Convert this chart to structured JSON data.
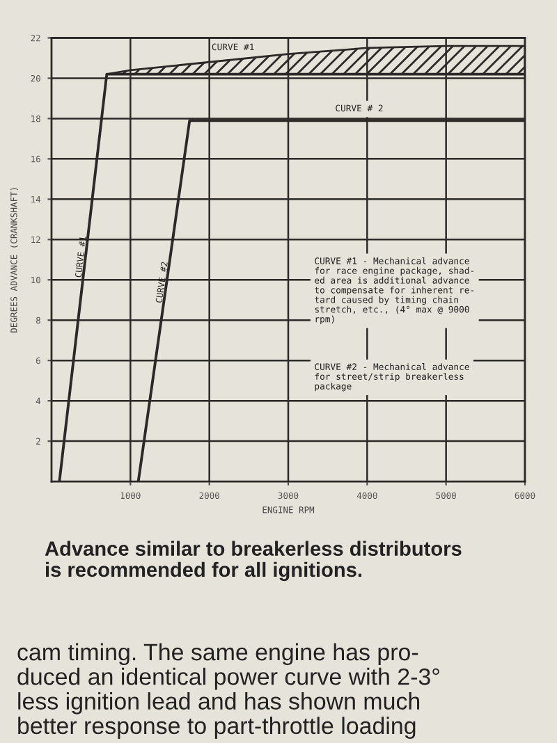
{
  "chart_data": {
    "type": "line",
    "xlabel": "ENGINE RPM",
    "ylabel": "DEGREES ADVANCE (CRANKSHAFT)",
    "xlim": [
      0,
      6000
    ],
    "xticks": [
      1000,
      2000,
      3000,
      4000,
      5000,
      6000
    ],
    "ylim": [
      0,
      22
    ],
    "yticks": [
      2,
      4,
      6,
      8,
      10,
      12,
      14,
      16,
      18,
      20,
      22
    ],
    "grid": true,
    "legend": false,
    "marker": "none",
    "line_style": "solid",
    "series": [
      {
        "name": "CURVE #1",
        "color": "#2b2a28",
        "x": [
          100,
          700,
          1000,
          2000,
          3000,
          4000,
          5000,
          6000
        ],
        "values": [
          0,
          20.2,
          20.2,
          20.2,
          20.2,
          20.2,
          20.2,
          20.2
        ],
        "lower": [
          null,
          20.2,
          20.2,
          20.2,
          20.2,
          20.2,
          20.2,
          20.2
        ],
        "upper": [
          null,
          20.2,
          20.4,
          20.8,
          21.2,
          21.5,
          21.6,
          21.6
        ]
      },
      {
        "name": "CURVE #2",
        "color": "#2b2a28",
        "x": [
          1100,
          1750,
          6000
        ],
        "values": [
          0,
          17.9,
          17.9
        ]
      }
    ],
    "annotations": [
      {
        "text": "CURVE #1",
        "x": 2300,
        "y": 21.3
      },
      "CURVE # 2",
      "CURVE #1 - Mechanical advance\nfor race engine package, shad-\ned area is additional advance\nto compensate for inherent re-\ntard caused by timing chain\nstretch, etc., (4° max @ 9000\nrpm)",
      "CURVE #2 - Mechanical advance\nfor street/strip breakerless\npackage",
      "Advance similar to breakerless distributors\nis recommended for all ignitions.",
      "cam timing. The same engine has pro-\nduced an identical power curve with 2-3°\nless ignition lead and has shown much\nbetter response to part-throttle loading"
    ]
  }
}
